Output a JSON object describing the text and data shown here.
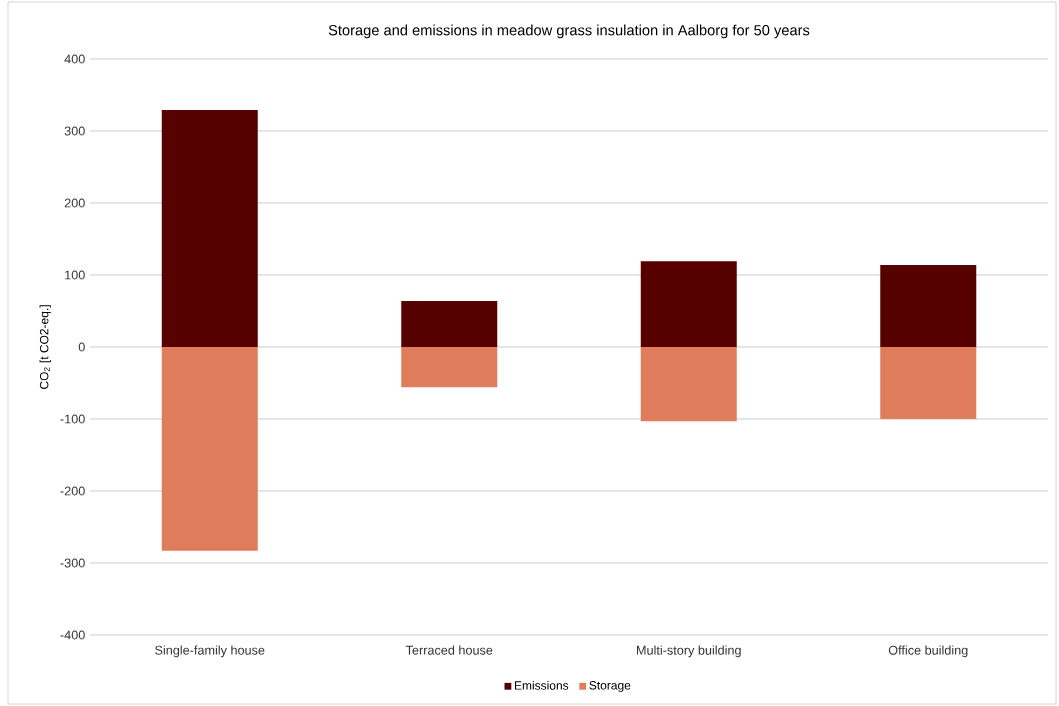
{
  "chart_data": {
    "type": "bar",
    "title": "Storage and emissions in meadow grass insulation in Aalborg for 50 years",
    "ylabel": "CO$_{2}$ [t CO2-eq.]",
    "categories": [
      "Single-family house",
      "Terraced house",
      "Multi-story building",
      "Office building"
    ],
    "series": [
      {
        "name": "Emissions",
        "color": "#560000",
        "values": [
          329,
          64,
          119,
          114
        ]
      },
      {
        "name": "Storage",
        "color": "#df7c5b",
        "values": [
          -283,
          -56,
          -103,
          -100
        ]
      }
    ],
    "stacked": true,
    "ylim": [
      -400,
      400
    ],
    "yticks": [
      -400,
      -300,
      -200,
      -100,
      0,
      100,
      200,
      300,
      400
    ],
    "grid": "y",
    "legend": "bottom"
  }
}
